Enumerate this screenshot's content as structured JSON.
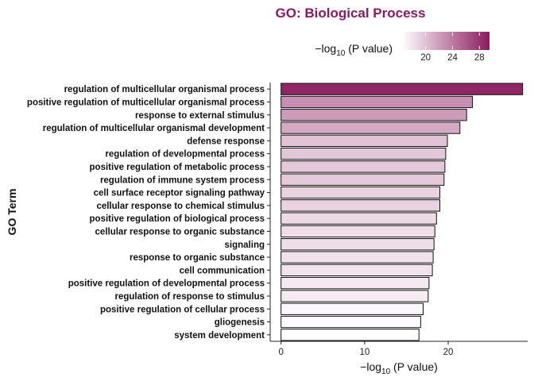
{
  "chart_data": {
    "type": "bar",
    "orientation": "horizontal",
    "title": "GO: Biological Process",
    "xlabel": "−log",
    "xlabel_sub": "10",
    "xlabel_rest": " (P value)",
    "ylabel": "GO Term",
    "xlim": [
      -1.3,
      29.5
    ],
    "x_ticks": [
      0,
      10,
      20
    ],
    "categories": [
      "regulation of multicellular organismal process",
      "positive regulation of multicellular organismal process",
      "response to external stimulus",
      "regulation of multicellular organismal development",
      "defense response",
      "regulation of developmental process",
      "positive regulation of metabolic process",
      "regulation of immune system process",
      "cell surface receptor signaling pathway",
      "cellular response to chemical stimulus",
      "positive regulation of biological process",
      "cellular response to organic substance",
      "signaling",
      "response to organic substance",
      "cell communication",
      "positive regulation of developmental process",
      "regulation of response to stimulus",
      "positive regulation of cellular process",
      "gliogenesis",
      "system development"
    ],
    "values": [
      28.9,
      22.9,
      22.2,
      21.4,
      19.9,
      19.7,
      19.6,
      19.5,
      19.0,
      19.0,
      18.6,
      18.4,
      18.3,
      18.2,
      18.1,
      17.7,
      17.6,
      17.0,
      16.7,
      16.5
    ],
    "legend": {
      "title": "−log",
      "title_sub": "10",
      "title_rest": " (P value)",
      "placement": "top",
      "range": [
        16.5,
        29.5
      ],
      "ticks": [
        20,
        24,
        28
      ],
      "color_low": "#ffffff",
      "color_high": "#8b1a5f"
    },
    "grid": false
  }
}
